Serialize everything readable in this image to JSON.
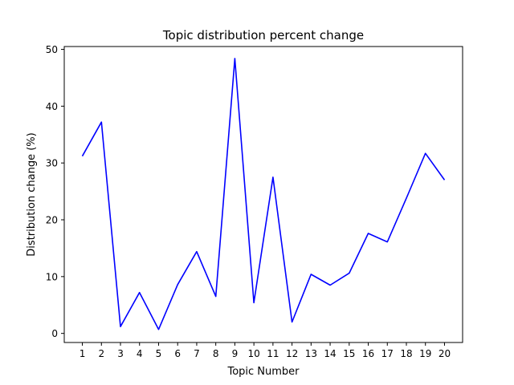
{
  "chart_data": {
    "type": "line",
    "title": "Topic distribution percent change",
    "xlabel": "Topic Number",
    "ylabel": "Distribution change (%)",
    "categories": [
      "1",
      "2",
      "3",
      "4",
      "5",
      "6",
      "7",
      "8",
      "9",
      "10",
      "11",
      "12",
      "13",
      "14",
      "15",
      "16",
      "17",
      "18",
      "19",
      "20"
    ],
    "series": [
      {
        "values": [
          31.2,
          37.2,
          1.2,
          7.2,
          0.7,
          8.6,
          14.4,
          6.5,
          48.4,
          5.4,
          27.5,
          2.0,
          10.4,
          8.5,
          10.6,
          17.6,
          16.1,
          23.8,
          31.7,
          27.0
        ]
      }
    ],
    "ylim": [
      -1.6,
      50.5
    ],
    "yticks": [
      0,
      10,
      20,
      30,
      40,
      50
    ],
    "line_color": "#0000ff",
    "grid": false,
    "legend": "none"
  }
}
